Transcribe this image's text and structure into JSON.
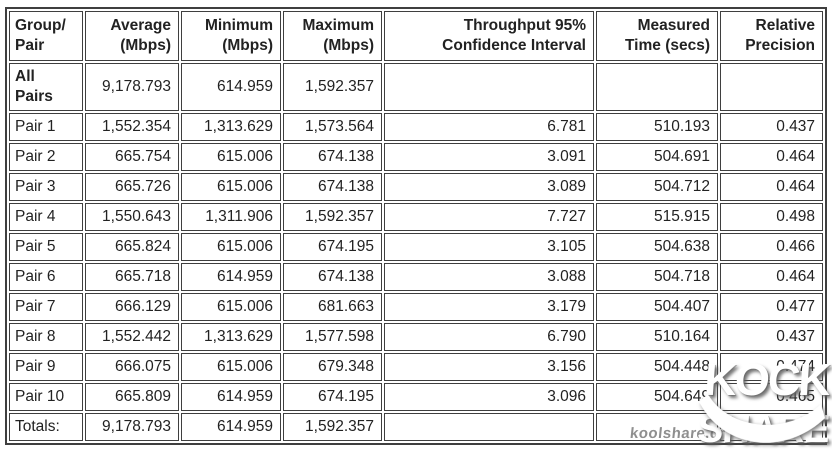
{
  "colors": {
    "background": "#ffffff",
    "table_border": "#3f3f3f",
    "text": "#222222",
    "watermark_gray": "#8f8f8f",
    "watermark_white": "#ffffff"
  },
  "table": {
    "columns": [
      "Group/\nPair",
      "Average\n(Mbps)",
      "Minimum\n(Mbps)",
      "Maximum\n(Mbps)",
      "Throughput 95%\nConfidence Interval",
      "Measured\nTime (secs)",
      "Relative\nPrecision"
    ],
    "rows": [
      {
        "type": "group",
        "label": "All\nPairs",
        "average": "9,178.793",
        "minimum": "614.959",
        "maximum": "1,592.357",
        "ci95": "",
        "measured_time": "",
        "relative_precision": ""
      },
      {
        "type": "pair",
        "label": "Pair 1",
        "average": "1,552.354",
        "minimum": "1,313.629",
        "maximum": "1,573.564",
        "ci95": "6.781",
        "measured_time": "510.193",
        "relative_precision": "0.437"
      },
      {
        "type": "pair",
        "label": "Pair 2",
        "average": "665.754",
        "minimum": "615.006",
        "maximum": "674.138",
        "ci95": "3.091",
        "measured_time": "504.691",
        "relative_precision": "0.464"
      },
      {
        "type": "pair",
        "label": "Pair 3",
        "average": "665.726",
        "minimum": "615.006",
        "maximum": "674.138",
        "ci95": "3.089",
        "measured_time": "504.712",
        "relative_precision": "0.464"
      },
      {
        "type": "pair",
        "label": "Pair 4",
        "average": "1,550.643",
        "minimum": "1,311.906",
        "maximum": "1,592.357",
        "ci95": "7.727",
        "measured_time": "515.915",
        "relative_precision": "0.498"
      },
      {
        "type": "pair",
        "label": "Pair 5",
        "average": "665.824",
        "minimum": "615.006",
        "maximum": "674.195",
        "ci95": "3.105",
        "measured_time": "504.638",
        "relative_precision": "0.466"
      },
      {
        "type": "pair",
        "label": "Pair 6",
        "average": "665.718",
        "minimum": "614.959",
        "maximum": "674.138",
        "ci95": "3.088",
        "measured_time": "504.718",
        "relative_precision": "0.464"
      },
      {
        "type": "pair",
        "label": "Pair 7",
        "average": "666.129",
        "minimum": "615.006",
        "maximum": "681.663",
        "ci95": "3.179",
        "measured_time": "504.407",
        "relative_precision": "0.477"
      },
      {
        "type": "pair",
        "label": "Pair 8",
        "average": "1,552.442",
        "minimum": "1,313.629",
        "maximum": "1,577.598",
        "ci95": "6.790",
        "measured_time": "510.164",
        "relative_precision": "0.437"
      },
      {
        "type": "pair",
        "label": "Pair 9",
        "average": "666.075",
        "minimum": "615.006",
        "maximum": "679.348",
        "ci95": "3.156",
        "measured_time": "504.448",
        "relative_precision": "0.474"
      },
      {
        "type": "pair",
        "label": "Pair 10",
        "average": "665.809",
        "minimum": "614.959",
        "maximum": "674.195",
        "ci95": "3.096",
        "measured_time": "504.649",
        "relative_precision": "0.465"
      },
      {
        "type": "totals",
        "label": "Totals:",
        "average": "9,178.793",
        "minimum": "614.959",
        "maximum": "1,592.357",
        "ci95": "",
        "measured_time": "",
        "relative_precision": ""
      }
    ]
  },
  "watermark": {
    "site_text": "koolshare.cn",
    "logo_line1": "KOCK",
    "logo_line2": "SHARE"
  }
}
